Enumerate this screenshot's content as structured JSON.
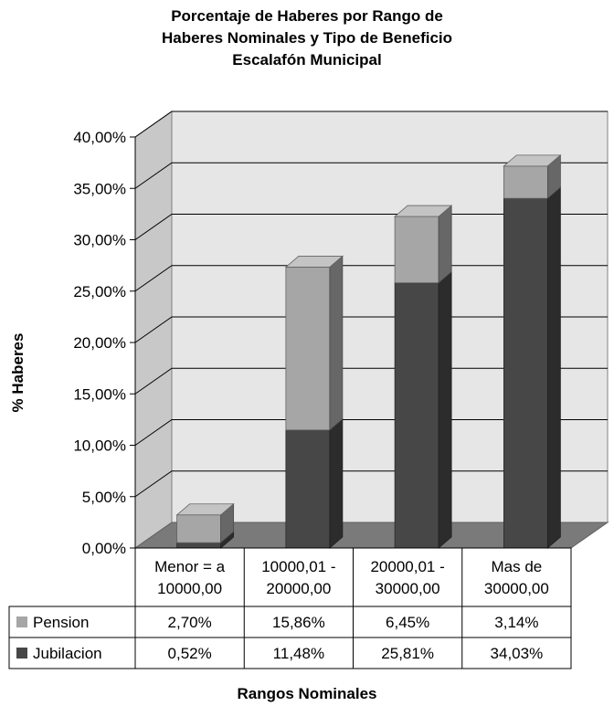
{
  "chart_data": {
    "type": "bar",
    "stacked": true,
    "three_d": true,
    "title_lines": [
      "Porcentaje de Haberes por Rango de",
      "Haberes Nominales y Tipo de Beneficio",
      "Escalafón Municipal"
    ],
    "xlabel": "Rangos Nominales",
    "ylabel": "% Haberes",
    "categories": [
      [
        "Menor = a",
        "10000,00"
      ],
      [
        "10000,01 -",
        "20000,00"
      ],
      [
        "20000,01 -",
        "30000,00"
      ],
      [
        "Mas de",
        "30000,00"
      ]
    ],
    "series": [
      {
        "name": "Jubilacion",
        "color": "#474747",
        "values": [
          0.52,
          11.48,
          25.81,
          34.03
        ],
        "labels": [
          "0,52%",
          "11,48%",
          "25,81%",
          "34,03%"
        ]
      },
      {
        "name": "Pension",
        "color": "#a6a6a6",
        "values": [
          2.7,
          15.86,
          6.45,
          3.14
        ],
        "labels": [
          "2,70%",
          "15,86%",
          "6,45%",
          "3,14%"
        ]
      }
    ],
    "table_order": [
      "Pension",
      "Jubilacion"
    ],
    "yticks": [
      0,
      5,
      10,
      15,
      20,
      25,
      30,
      35,
      40
    ],
    "ytick_labels": [
      "0,00%",
      "5,00%",
      "10,00%",
      "15,00%",
      "20,00%",
      "25,00%",
      "30,00%",
      "35,00%",
      "40,00%"
    ],
    "ylim": [
      0,
      40
    ],
    "grid": true,
    "legend": "data-table"
  }
}
